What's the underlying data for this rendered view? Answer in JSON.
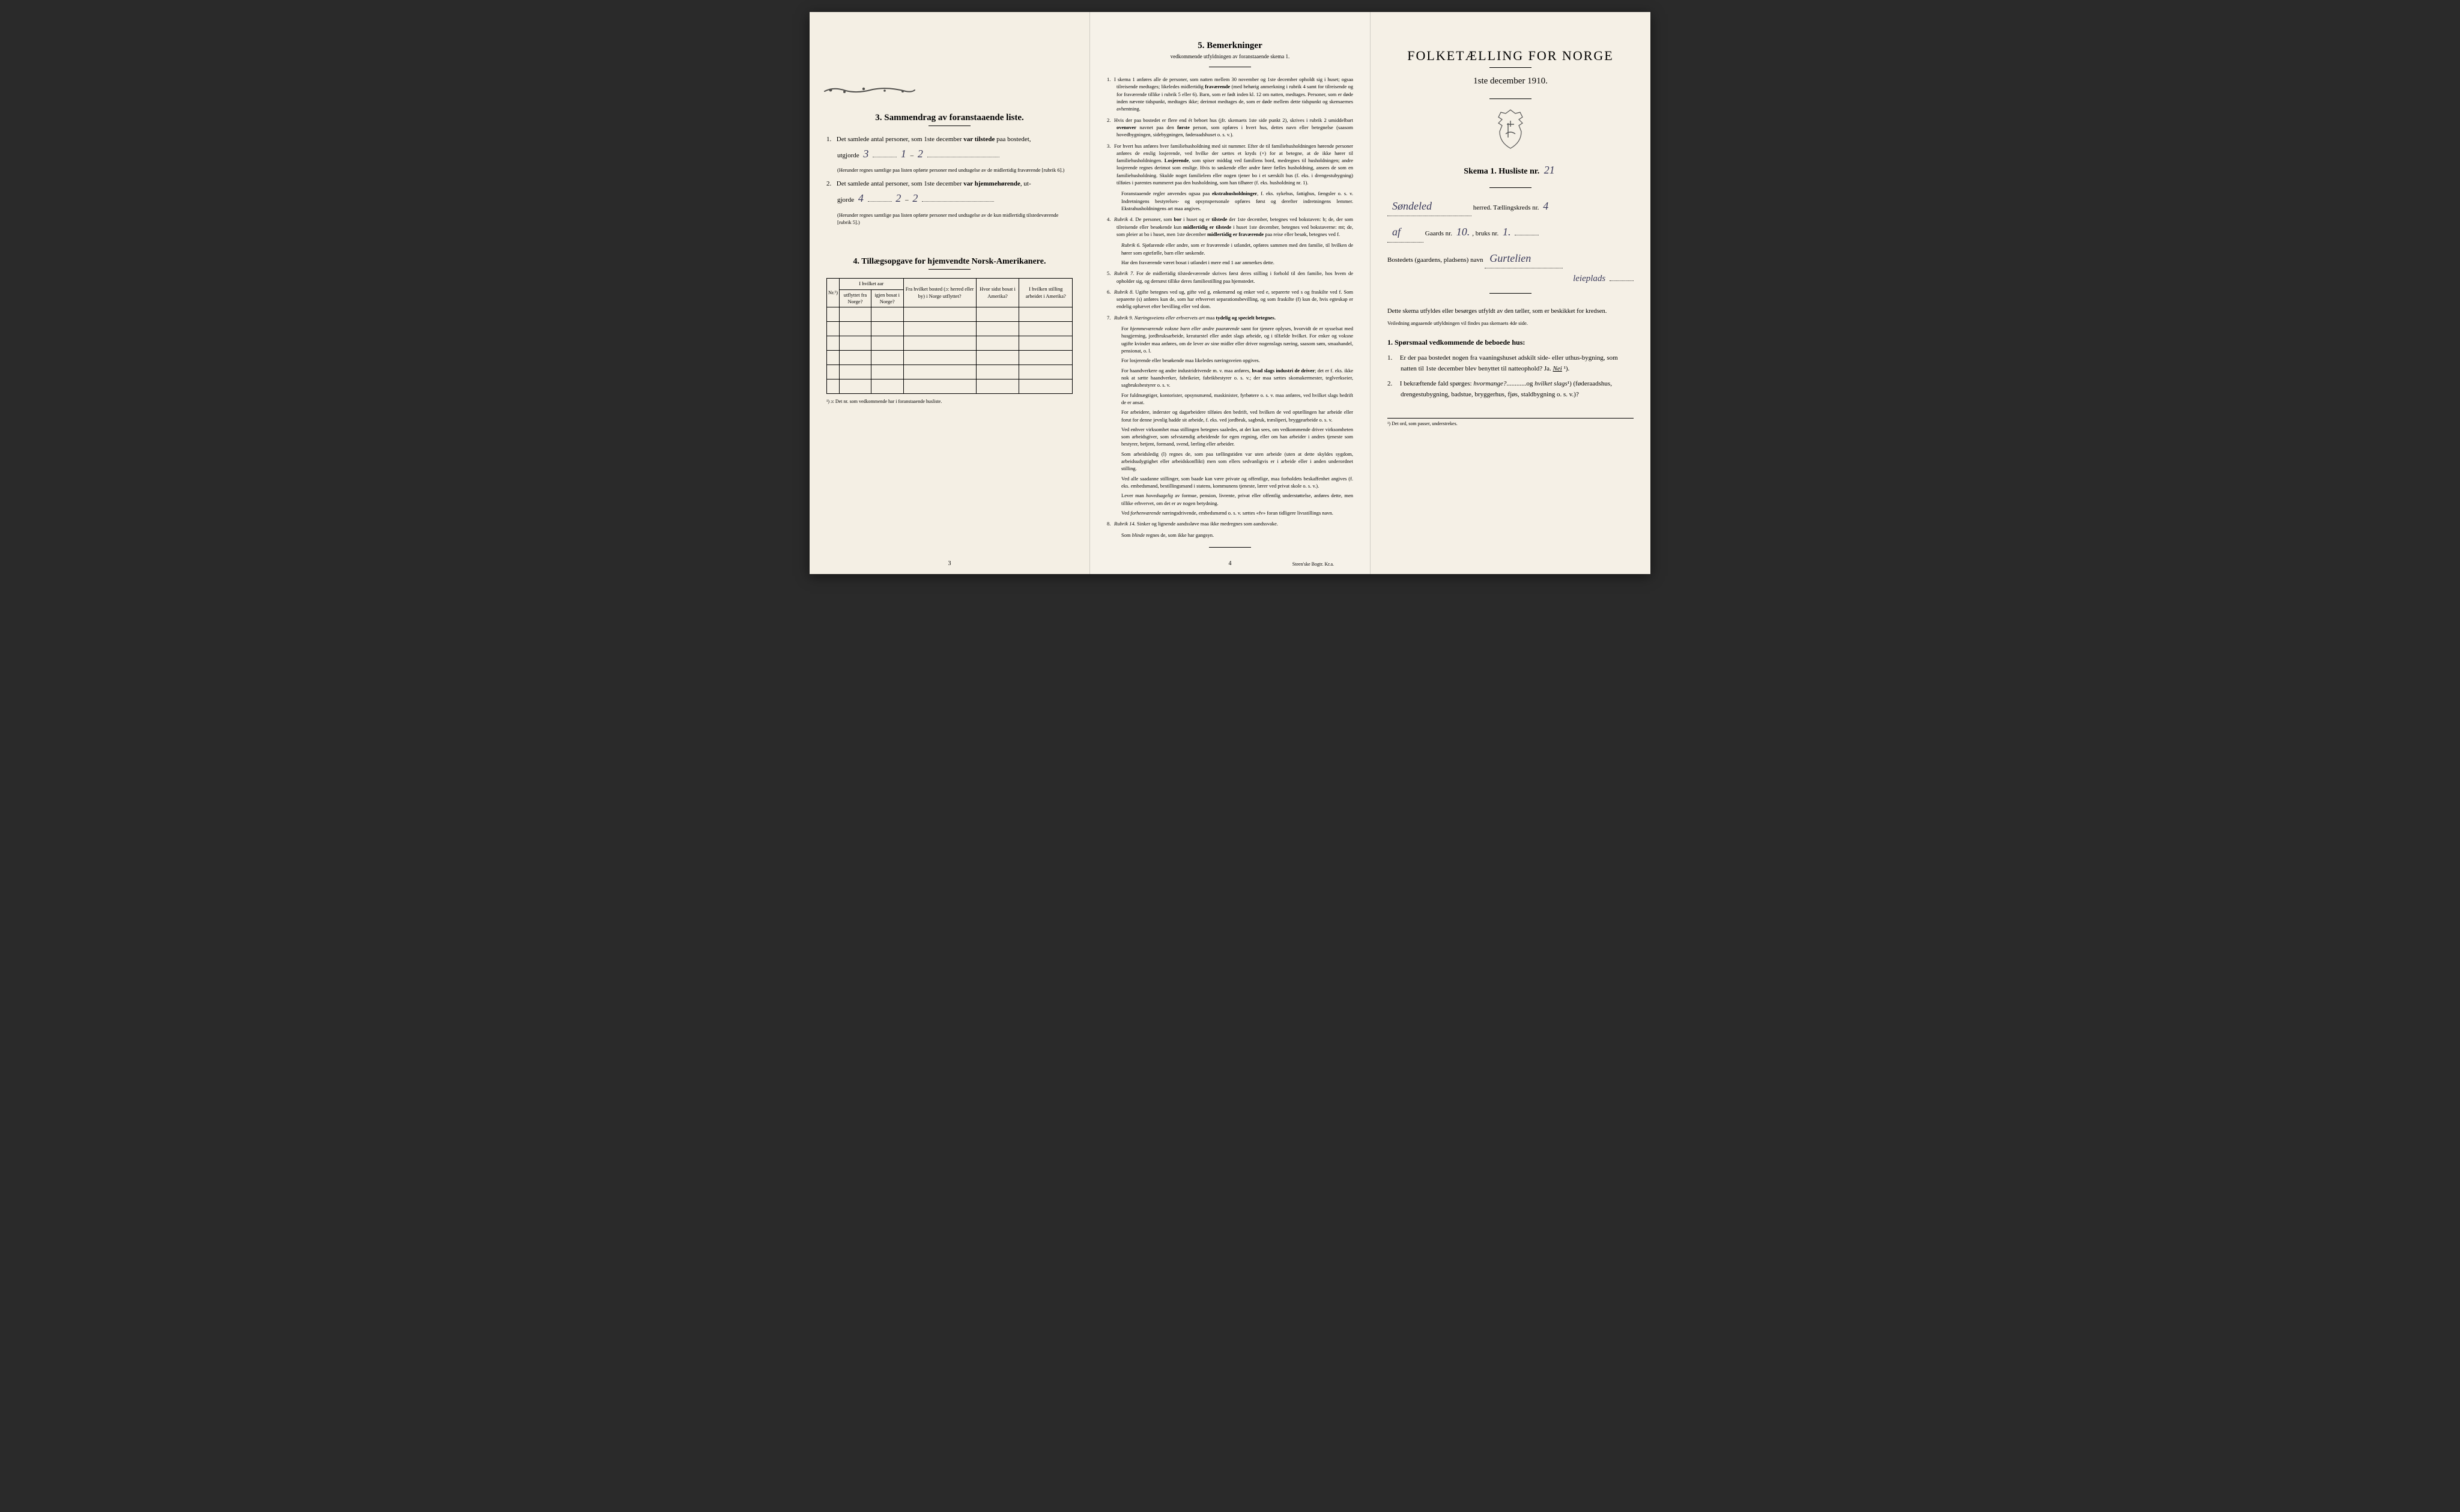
{
  "colors": {
    "page_bg": "#f5f1e8",
    "text": "#1a1a1a",
    "handwriting": "#3a3a5a",
    "border": "#000000",
    "shadow_bg": "#2a2a2a"
  },
  "panel_left": {
    "section3": {
      "title": "3.  Sammendrag av foranstaaende liste.",
      "item1_pre": "Det samlede antal personer, som 1ste december ",
      "item1_bold": "var tilstede",
      "item1_post": " paa bostedet,",
      "item1_line2": "utgjorde",
      "item1_hand_total": "3",
      "item1_hand_m": "1",
      "item1_hand_k": "2",
      "item1_note": "(Herunder regnes samtlige paa listen opførte personer med undtagelse av de midlertidig fraværende [rubrik 6].)",
      "item2_pre": "Det samlede antal personer, som 1ste december ",
      "item2_bold": "var hjemmehørende",
      "item2_post": ", ut-",
      "item2_line2": "gjorde",
      "item2_hand_total": "4",
      "item2_hand_m": "2",
      "item2_hand_k": "2",
      "item2_note": "(Herunder regnes samtlige paa listen opførte personer med undtagelse av de kun midlertidig tilstedeværende [rubrik 5].)"
    },
    "section4": {
      "title": "4.  Tillægsopgave for hjemvendte Norsk-Amerikanere.",
      "col_nr": "Nr.¹)",
      "col_group1": "I hvilket aar",
      "col_utflyttet": "utflyttet fra Norge?",
      "col_igjen": "igjen bosat i Norge?",
      "col_fra": "Fra hvilket bosted (ɔ: herred eller by) i Norge utflyttet?",
      "col_hvor": "Hvor sidst bosat i Amerika?",
      "col_stilling": "I hvilken stilling arbeidet i Amerika?",
      "footnote": "¹) ɔ: Det nr. som vedkommende har i foranstaaende husliste.",
      "empty_rows": 6
    },
    "page_num": "3"
  },
  "panel_center": {
    "title": "5.  Bemerkninger",
    "subtitle": "vedkommende utfyldningen av foranstaaende skema 1.",
    "items": [
      {
        "n": "1.",
        "text": "I skema 1 anføres alle de personer, som natten mellem 30 november og 1ste december opholdt sig i huset; ogsaa tilreisende medtages; likeledes midlertidig <b>fraværende</b> (med behørig anmerkning i rubrik 4 samt for tilreisende og for fraværende tillike i rubrik 5 eller 6). Barn, som er født inden kl. 12 om natten, medtages. Personer, som er døde inden nævnte tidspunkt, medtages ikke; derimot medtages de, som er døde mellem dette tidspunkt og skemaernes avhentning."
      },
      {
        "n": "2.",
        "text": "Hvis der paa bostedet er flere end ét beboet hus (jfr. skemaets 1ste side punkt 2), skrives i rubrik 2 umiddelbart <b>ovenover</b> navnet paa den <b>første</b> person, som opføres i hvert hus, dettes navn eller betegnelse (saasom hovedbygningen, sidebygningen, føderaadshuset o. s. v.)."
      },
      {
        "n": "3.",
        "text": "For hvert hus anføres hver familiehusholdning med sit nummer. Efter de til familiehusholdningen hørende personer anføres de enslig losjerende, ved hvilke der sættes et kryds (×) for at betegne, at de ikke hører til familiehusholdningen. <b>Losjerende</b>, som spiser middag ved familiens bord, medregnes til husholdningen; andre losjerende regnes derimot som enslige. Hvis to søskende eller andre fører fælles husholdning, ansees de som en familiehusholdning. Skulde noget familielem eller nogen tjener bo i et særskilt hus (f. eks. i drengestubygning) tilføies i parentes nummeret paa den husholdning, som han tilhører (f. eks. husholdning nr. 1)."
      },
      {
        "n": "",
        "text": "Foranstaaende regler anvendes ogsaa paa <b>ekstrahusholdninger</b>, f. eks. sykehus, fattighus, fængsler o. s. v. Indretningens bestyrelses- og opsynspersonale opføres først og derefter indretningens lemmer. Ekstrahusholdningens art maa angives."
      },
      {
        "n": "4.",
        "text": "<i>Rubrik 4.</i> De personer, som <b>bor</b> i huset og er <b>tilstede</b> der 1ste december, betegnes ved bokstaven: b; de, der som tilreisende eller besøkende kun <b>midlertidig er tilstede</b> i huset 1ste december, betegnes ved bokstaverne: mt; de, som pleier at bo i huset, men 1ste december <b>midlertidig er fraværende</b> paa reise eller besøk, betegnes ved f."
      },
      {
        "n": "",
        "text": "<i>Rubrik 6.</i> Sjøfarende eller andre, som er fraværende i utlandet, opføres sammen med den familie, til hvilken de hører som egtefælle, barn eller søskende."
      },
      {
        "n": "",
        "text": "Har den fraværende været bosat i utlandet i mere end 1 aar anmerkes dette."
      },
      {
        "n": "5.",
        "text": "<i>Rubrik 7.</i> For de midlertidig tilstedeværende skrives først deres stilling i forhold til den familie, hos hvem de opholder sig, og dernæst tillike deres familiestilling paa hjemstedet."
      },
      {
        "n": "6.",
        "text": "<i>Rubrik 8.</i> Ugifte betegnes ved ug, gifte ved g, enkemænd og enker ved e, separerte ved s og fraskilte ved f. Som separerte (s) anføres kun de, som har erhvervet separationsbevilling, og som fraskilte (f) kun de, hvis egteskap er endelig ophævet efter bevilling eller ved dom."
      },
      {
        "n": "7.",
        "text": "<i>Rubrik 9.</i> <i>Næringsveiens eller erhvervets art</i> maa <b>tydelig og specielt betegnes.</b>"
      },
      {
        "n": "",
        "text": "For <i>hjemmeværende voksne barn eller andre paarørende</i> samt for tjenere oplyses, hvorvidt de er sysselsat med husgjerning, jordbruksarbeide, kreaturstel eller andet slags arbeide, og i tilfælde hvilket. For enker og voksne ugifte kvinder maa anføres, om de lever av sine midler eller driver nogenslags næring, saasom søm, smaahandel, pensionat, o. l."
      },
      {
        "n": "",
        "text": "For losjerende eller besøkende maa likeledes næringsveien opgives."
      },
      {
        "n": "",
        "text": "For haandverkere og andre industridrivende m. v. maa anføres, <b>hvad slags industri de driver</b>; det er f. eks. ikke nok at sætte haandverker, fabrikeier, fabrikbestyrer o. s. v.; der maa sættes skomakermester, teglverkseier, sagbruksbestyrer o. s. v."
      },
      {
        "n": "",
        "text": "For fuldmægtiger, kontorister, opsynsmænd, maskinister, fyrbøtere o. s. v. maa anføres, ved hvilket slags bedrift de er ansat."
      },
      {
        "n": "",
        "text": "For arbeidere, inderster og dagarbeidere tilføies den bedrift, ved hvilken de ved optællingen har arbeide eller forut for denne jevnlig hadde sit arbeide, f. eks. ved jordbruk, sagbruk, træsliperi, bryggearbeide o. s. v."
      },
      {
        "n": "",
        "text": "Ved enhver virksomhet maa stillingen betegnes saaledes, at det kan sees, om vedkommende driver virksomheten som arbeidsgiver, som selvstændig arbeidende for egen regning, eller om han arbeider i andres tjeneste som bestyrer, betjent, formand, svend, lærling eller arbeider."
      },
      {
        "n": "",
        "text": "Som arbeidsledig (l) regnes de, som paa tællingstiden var uten arbeide (uten at dette skyldes sygdom, arbeidsudygtighet eller arbeidskonflikt) men som ellers sedvanligvis er i arbeide eller i anden underordnet stilling."
      },
      {
        "n": "",
        "text": "Ved alle saadanne stillinger, som baade kan være private og offentlige, maa forholdets beskaffenhet angives (f. eks. embedsmand, bestillingsmand i statens, kommunens tjeneste, lærer ved privat skole o. s. v.)."
      },
      {
        "n": "",
        "text": "Lever man <i>hovedsagelig</i> av formue, pension, livrente, privat eller offentlig understøttelse, anføres dette, men tillike erhvervet, om det er av nogen betydning."
      },
      {
        "n": "",
        "text": "Ved <i>forhenværende</i> næringsdrivende, embedsmænd o. s. v. sættes «fv» foran tidligere livsstillings navn."
      },
      {
        "n": "8.",
        "text": "<i>Rubrik 14.</i> Sinker og lignende aandssløve maa ikke medregnes som aandssvake."
      },
      {
        "n": "",
        "text": "Som <i>blinde</i> regnes de, som ikke har gangsyn."
      }
    ],
    "page_num": "4",
    "printer": "Steen'ske Bogtr.  Kr.a."
  },
  "panel_right": {
    "main_title": "FOLKETÆLLING FOR NORGE",
    "main_date": "1ste december 1910.",
    "skema_label": "Skema 1.  Husliste nr.",
    "husliste_nr": "21",
    "herred_hand": "Søndeled",
    "herred_label": "herred.  Tællingskreds nr.",
    "kreds_nr": "4",
    "gaard_pre_hand": "af",
    "gaard_label": "Gaards nr.",
    "gaard_nr": "10.",
    "bruks_label": "bruks nr.",
    "bruks_nr": "1.",
    "bosted_label": "Bostedets (gaardens, pladsens) navn",
    "bosted_hand": "Gurtelien",
    "bosted_hand2": "leieplads",
    "body_note": "Dette skema utfyldes eller besørges utfyldt av den tæller, som er beskikket for kredsen.",
    "body_note_small": "Veiledning angaaende utfyldningen vil findes paa skemaets 4de side.",
    "q_heading": "1. Spørsmaal vedkommende de beboede hus:",
    "q1": "Er der paa bostedet nogen fra vaaningshuset adskilt side- eller uthus-bygning, som natten til 1ste december blev benyttet til natteophold?   Ja.  ",
    "q1_answer": "Nei",
    "q2": "I bekræftende fald spørges: <i>hvormange?</i>............og <i>hvilket slags</i>¹) (føderaadshus, drengestubygning, badstue, bryggerhus, fjøs, staldbygning o. s. v.)?",
    "footnote": "¹) Det ord, som passer, understrekes."
  }
}
